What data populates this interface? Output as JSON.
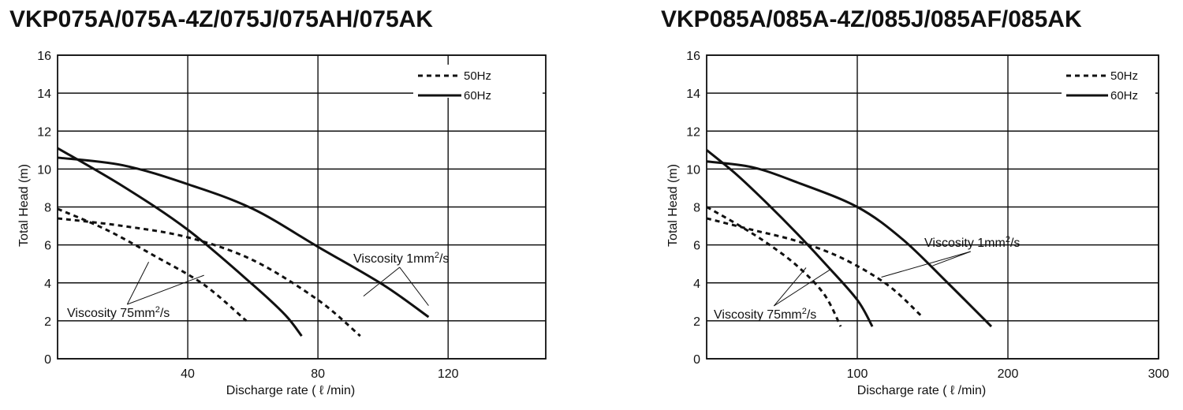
{
  "chart_data": [
    {
      "type": "line",
      "title": "VKP075A/075A-4Z/075J/075AH/075AK",
      "xlabel": "Discharge rate ( ℓ /min)",
      "ylabel": "Total Head (m)",
      "xlim": [
        0,
        150
      ],
      "ylim": [
        0,
        16
      ],
      "xticks": [
        40,
        80,
        120
      ],
      "yticks": [
        0,
        2,
        4,
        6,
        8,
        10,
        12,
        14,
        16
      ],
      "grid": true,
      "legend": {
        "position": "top-right",
        "entries": [
          {
            "label": "50Hz",
            "style": "dashed"
          },
          {
            "label": "60Hz",
            "style": "solid"
          }
        ]
      },
      "series": [
        {
          "legend": "60Hz",
          "style": "solid",
          "points": [
            [
              0,
              10.6
            ],
            [
              20,
              10.2
            ],
            [
              40,
              9.2
            ],
            [
              60,
              7.9
            ],
            [
              80,
              5.9
            ],
            [
              100,
              3.9
            ],
            [
              114,
              2.2
            ]
          ]
        },
        {
          "legend": "50Hz",
          "style": "dashed",
          "points": [
            [
              0,
              7.4
            ],
            [
              20,
              7.0
            ],
            [
              40,
              6.4
            ],
            [
              60,
              5.2
            ],
            [
              80,
              3.1
            ],
            [
              93,
              1.2
            ]
          ]
        },
        {
          "legend": "60Hz",
          "style": "solid",
          "points": [
            [
              0,
              11.1
            ],
            [
              20,
              9.1
            ],
            [
              40,
              6.8
            ],
            [
              60,
              3.9
            ],
            [
              70,
              2.3
            ],
            [
              75,
              1.2
            ]
          ]
        },
        {
          "legend": "50Hz",
          "style": "dashed",
          "points": [
            [
              0,
              7.9
            ],
            [
              15,
              6.8
            ],
            [
              30,
              5.4
            ],
            [
              45,
              3.9
            ],
            [
              58,
              2.0
            ]
          ]
        }
      ],
      "annotations": [
        {
          "text": "Viscosity 1mm",
          "sup": "2",
          "suffix": "/s"
        },
        {
          "text": "Viscosity 75mm",
          "sup": "2",
          "suffix": "/s"
        }
      ]
    },
    {
      "type": "line",
      "title": "VKP085A/085A-4Z/085J/085AF/085AK",
      "xlabel": "Discharge rate ( ℓ /min)",
      "ylabel": "Total Head (m)",
      "xlim": [
        0,
        300
      ],
      "ylim": [
        0,
        16
      ],
      "xticks": [
        100,
        200,
        300
      ],
      "yticks": [
        0,
        2,
        4,
        6,
        8,
        10,
        12,
        14,
        16
      ],
      "grid": true,
      "legend": {
        "position": "top-right",
        "entries": [
          {
            "label": "50Hz",
            "style": "dashed"
          },
          {
            "label": "60Hz",
            "style": "solid"
          }
        ]
      },
      "series": [
        {
          "legend": "60Hz",
          "style": "solid",
          "points": [
            [
              0,
              10.4
            ],
            [
              30,
              10.1
            ],
            [
              60,
              9.3
            ],
            [
              100,
              8.0
            ],
            [
              130,
              6.3
            ],
            [
              160,
              4.0
            ],
            [
              189,
              1.7
            ]
          ]
        },
        {
          "legend": "50Hz",
          "style": "dashed",
          "points": [
            [
              0,
              7.4
            ],
            [
              30,
              6.8
            ],
            [
              60,
              6.2
            ],
            [
              90,
              5.3
            ],
            [
              120,
              3.9
            ],
            [
              142,
              2.3
            ]
          ]
        },
        {
          "legend": "60Hz",
          "style": "solid",
          "points": [
            [
              0,
              11.0
            ],
            [
              20,
              9.7
            ],
            [
              40,
              8.2
            ],
            [
              60,
              6.6
            ],
            [
              80,
              4.9
            ],
            [
              100,
              3.1
            ],
            [
              110,
              1.7
            ]
          ]
        },
        {
          "legend": "50Hz",
          "style": "dashed",
          "points": [
            [
              0,
              8.0
            ],
            [
              20,
              7.1
            ],
            [
              40,
              6.1
            ],
            [
              60,
              4.9
            ],
            [
              78,
              3.4
            ],
            [
              89,
              1.7
            ]
          ]
        }
      ],
      "annotations": [
        {
          "text": "Viscosity 1mm",
          "sup": "2",
          "suffix": "/s"
        },
        {
          "text": "Viscosity 75mm",
          "sup": "2",
          "suffix": "/s"
        }
      ]
    }
  ]
}
